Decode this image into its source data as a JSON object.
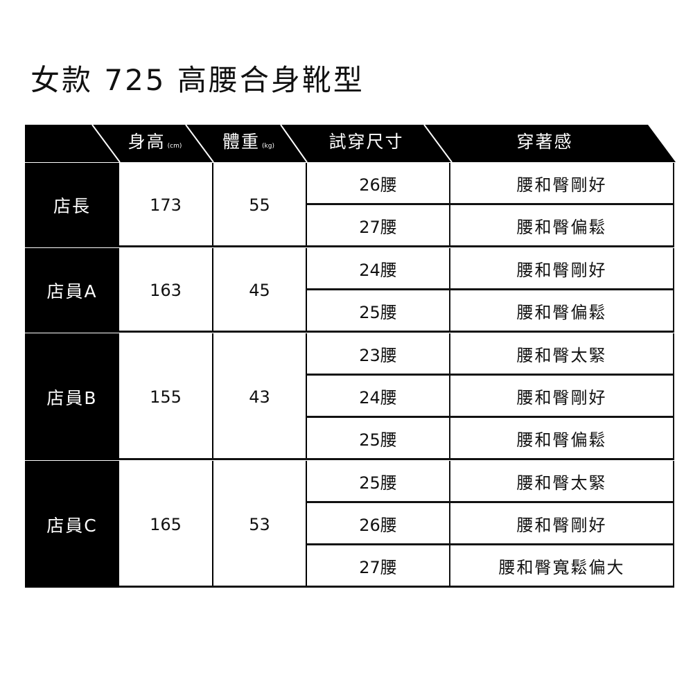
{
  "title": "女款 725 高腰合身靴型",
  "header": {
    "name": "",
    "height": "身高",
    "height_unit": "(cm)",
    "weight": "體重",
    "weight_unit": "(kg)",
    "size": "試穿尺寸",
    "feel": "穿著感"
  },
  "groups": [
    {
      "name": "店長",
      "height": "173",
      "weight": "55",
      "fits": [
        {
          "size": "26腰",
          "feel": "腰和臀剛好"
        },
        {
          "size": "27腰",
          "feel": "腰和臀偏鬆"
        }
      ]
    },
    {
      "name": "店員A",
      "height": "163",
      "weight": "45",
      "fits": [
        {
          "size": "24腰",
          "feel": "腰和臀剛好"
        },
        {
          "size": "25腰",
          "feel": "腰和臀偏鬆"
        }
      ]
    },
    {
      "name": "店員B",
      "height": "155",
      "weight": "43",
      "fits": [
        {
          "size": "23腰",
          "feel": "腰和臀太緊"
        },
        {
          "size": "24腰",
          "feel": "腰和臀剛好"
        },
        {
          "size": "25腰",
          "feel": "腰和臀偏鬆"
        }
      ]
    },
    {
      "name": "店員C",
      "height": "165",
      "weight": "53",
      "fits": [
        {
          "size": "25腰",
          "feel": "腰和臀太緊"
        },
        {
          "size": "26腰",
          "feel": "腰和臀剛好"
        },
        {
          "size": "27腰",
          "feel": "腰和臀寬鬆偏大"
        }
      ]
    }
  ],
  "colors": {
    "header_bg": "#000000",
    "text": "#111111",
    "background": "#ffffff"
  }
}
